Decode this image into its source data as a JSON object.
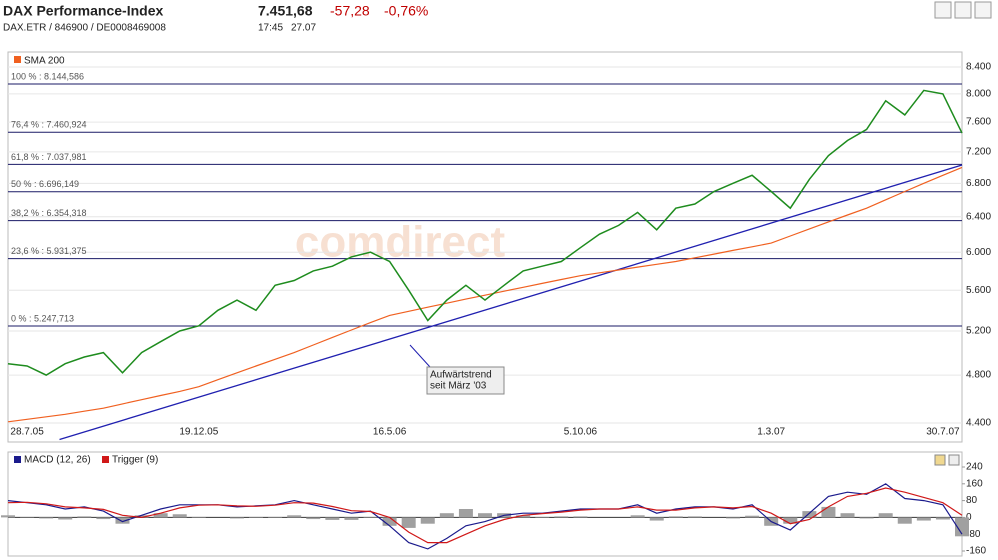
{
  "header": {
    "title": "DAX Performance-Index",
    "price": "7.451,68",
    "change": "-57,28",
    "change_pct": "-0,76%",
    "subtitle": "DAX.ETR / 846900 / DE0008469008",
    "time": "17:45",
    "date": "27.07"
  },
  "chart_data": [
    {
      "type": "line",
      "log_scale": true,
      "watermark": "comdirect",
      "categories": [
        null,
        "28.7.05",
        null,
        null,
        null,
        null,
        null,
        null,
        null,
        null,
        "19.12.05",
        null,
        null,
        null,
        null,
        null,
        null,
        null,
        null,
        null,
        "16.5.06",
        null,
        null,
        null,
        null,
        null,
        null,
        null,
        null,
        null,
        "5.10.06",
        null,
        null,
        null,
        null,
        null,
        null,
        null,
        null,
        null,
        "1.3.07",
        null,
        null,
        null,
        null,
        null,
        null,
        null,
        null,
        "30.7.07",
        null
      ],
      "values": [
        4900,
        4880,
        4800,
        4900,
        4960,
        5000,
        4820,
        5000,
        5100,
        5200,
        5250,
        5400,
        5500,
        5400,
        5650,
        5700,
        5800,
        5850,
        5950,
        6000,
        5900,
        5600,
        5300,
        5500,
        5650,
        5500,
        5650,
        5800,
        5850,
        5900,
        6050,
        6200,
        6300,
        6450,
        6250,
        6500,
        6550,
        6700,
        6800,
        6900,
        6700,
        6500,
        6850,
        7150,
        7350,
        7500,
        7900,
        7700,
        8050,
        8000,
        7450
      ],
      "color": "#1e8c1e",
      "series": [
        {
          "name": "SMA 200",
          "color": "#f06020",
          "values": [
            4410,
            4430,
            4450,
            4470,
            4495,
            4520,
            4555,
            4590,
            4625,
            4660,
            4700,
            4760,
            4820,
            4880,
            4940,
            5000,
            5070,
            5140,
            5210,
            5280,
            5350,
            5390,
            5430,
            5470,
            5510,
            5550,
            5590,
            5630,
            5670,
            5710,
            5750,
            5780,
            5810,
            5840,
            5870,
            5900,
            5940,
            5980,
            6020,
            6060,
            6100,
            6180,
            6260,
            6340,
            6420,
            6500,
            6600,
            6700,
            6800,
            6900,
            7000
          ]
        }
      ],
      "levels": [
        {
          "label": "100 % : 8.144,586",
          "value": 8144.586
        },
        {
          "label": "76,4 % : 7.460,924",
          "value": 7460.924
        },
        {
          "label": "61,8 % : 7.037,981",
          "value": 7037.981
        },
        {
          "label": "50 % : 6.696,149",
          "value": 6696.149
        },
        {
          "label": "38,2 % : 6.354,318",
          "value": 6354.318
        },
        {
          "label": "23,6 % : 5.931,375",
          "value": 5931.375
        },
        {
          "label": "0 % : 5.247,713",
          "value": 5247.713
        }
      ],
      "level_color": "#1a1a66",
      "trendline": {
        "color": "#2020b0",
        "values": [
          4270,
          7030
        ]
      },
      "annotation": {
        "lines": [
          "Aufwärtstrend",
          "seit März '03"
        ]
      },
      "ylim": [
        4400,
        8400
      ],
      "yticks": [
        {
          "value": 8400,
          "label": "8.400"
        },
        {
          "value": 8000,
          "label": "8.000"
        },
        {
          "value": 7600,
          "label": "7.600"
        },
        {
          "value": 7200,
          "label": "7.200"
        },
        {
          "value": 6800,
          "label": "6.800"
        },
        {
          "value": 6400,
          "label": "6.400"
        },
        {
          "value": 6000,
          "label": "6.000"
        },
        {
          "value": 5600,
          "label": "5.600"
        },
        {
          "value": 5200,
          "label": "5.200"
        },
        {
          "value": 4800,
          "label": "4.800"
        },
        {
          "value": 4400,
          "label": "4.400"
        }
      ],
      "grid": true
    },
    {
      "type": "line",
      "series": [
        {
          "name": "MACD (12, 26)",
          "color": "#1a1a8c",
          "values": [
            80,
            70,
            60,
            40,
            50,
            30,
            -20,
            10,
            40,
            60,
            60,
            60,
            50,
            55,
            60,
            80,
            60,
            40,
            20,
            30,
            -40,
            -120,
            -150,
            -100,
            -40,
            -20,
            10,
            20,
            20,
            30,
            40,
            40,
            40,
            60,
            20,
            40,
            50,
            50,
            40,
            60,
            -20,
            -60,
            20,
            100,
            120,
            110,
            160,
            90,
            80,
            60,
            -80
          ]
        },
        {
          "name": "Trigger (9)",
          "color": "#d01818",
          "values": [
            70,
            72,
            65,
            50,
            45,
            38,
            10,
            0,
            20,
            45,
            58,
            60,
            55,
            53,
            58,
            70,
            68,
            52,
            32,
            28,
            0,
            -70,
            -120,
            -120,
            -80,
            -40,
            -10,
            10,
            18,
            25,
            35,
            40,
            40,
            50,
            35,
            35,
            45,
            50,
            45,
            52,
            20,
            -30,
            -10,
            50,
            100,
            115,
            140,
            120,
            95,
            70,
            10
          ]
        }
      ],
      "histogram": {
        "color": "#a0a0a0",
        "values": [
          10,
          -2,
          -5,
          -10,
          5,
          -8,
          -30,
          10,
          20,
          15,
          2,
          0,
          -5,
          2,
          2,
          10,
          -8,
          -12,
          -12,
          2,
          -40,
          -50,
          -30,
          20,
          40,
          20,
          20,
          10,
          2,
          5,
          5,
          0,
          0,
          10,
          -15,
          5,
          5,
          0,
          -5,
          8,
          -40,
          -30,
          30,
          50,
          20,
          -5,
          20,
          -30,
          -15,
          -10,
          -90
        ]
      },
      "ylim": [
        -160,
        240
      ],
      "yticks": [
        240,
        160,
        80,
        0,
        -80,
        -160
      ]
    }
  ]
}
